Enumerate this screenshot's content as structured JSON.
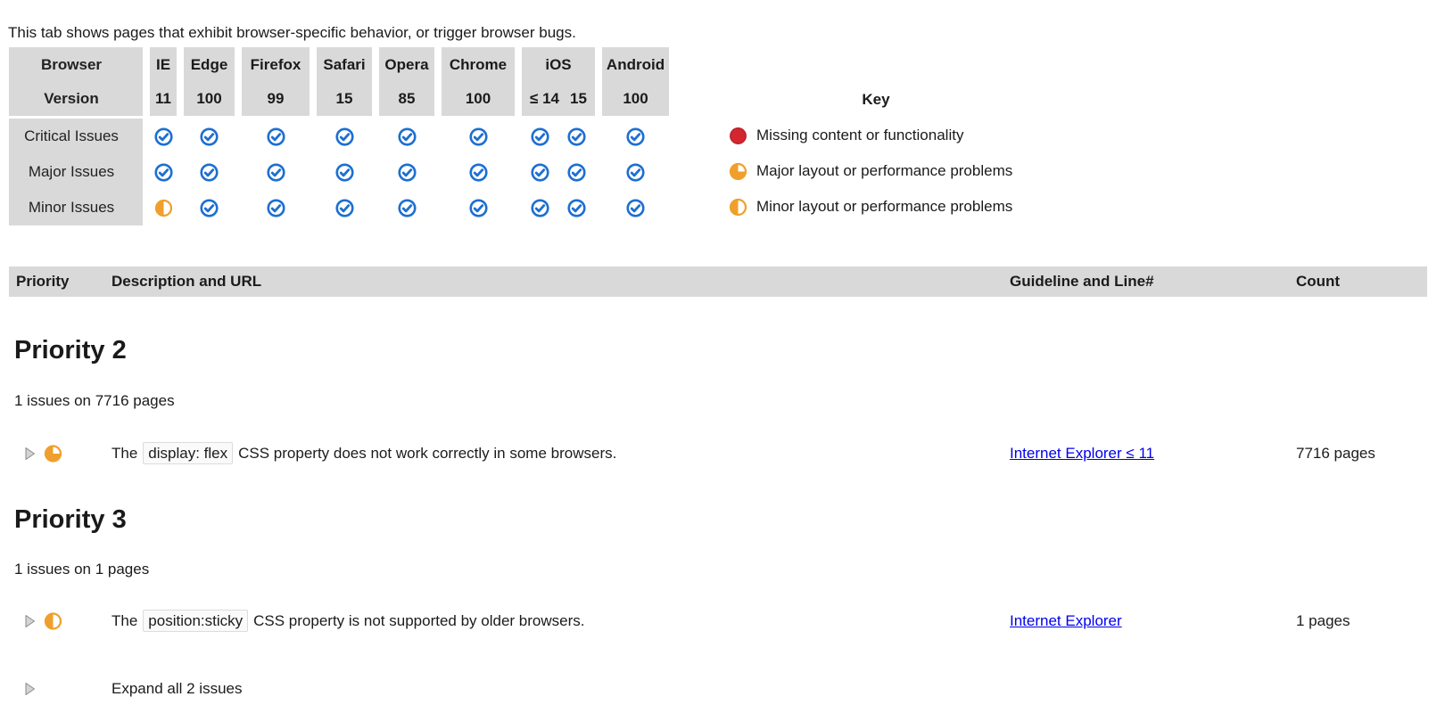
{
  "intro": "This tab shows pages that exhibit browser-specific behavior, or trigger browser bugs.",
  "browser_table": {
    "corner_labels": {
      "browser": "Browser",
      "version": "Version"
    },
    "browsers": [
      {
        "name": "IE",
        "versions": [
          "11"
        ]
      },
      {
        "name": "Edge",
        "versions": [
          "100"
        ]
      },
      {
        "name": "Firefox",
        "versions": [
          "99"
        ]
      },
      {
        "name": "Safari",
        "versions": [
          "15"
        ]
      },
      {
        "name": "Opera",
        "versions": [
          "85"
        ]
      },
      {
        "name": "Chrome",
        "versions": [
          "100"
        ]
      },
      {
        "name": "iOS",
        "versions": [
          "≤ 14",
          "15"
        ]
      },
      {
        "name": "Android",
        "versions": [
          "100"
        ]
      }
    ],
    "rows": [
      {
        "label": "Critical Issues",
        "cells": [
          [
            "ok"
          ],
          [
            "ok"
          ],
          [
            "ok"
          ],
          [
            "ok"
          ],
          [
            "ok"
          ],
          [
            "ok"
          ],
          [
            "ok",
            "ok"
          ],
          [
            "ok"
          ]
        ]
      },
      {
        "label": "Major Issues",
        "cells": [
          [
            "ok"
          ],
          [
            "ok"
          ],
          [
            "ok"
          ],
          [
            "ok"
          ],
          [
            "ok"
          ],
          [
            "ok"
          ],
          [
            "ok",
            "ok"
          ],
          [
            "ok"
          ]
        ]
      },
      {
        "label": "Minor Issues",
        "cells": [
          [
            "minor"
          ],
          [
            "ok"
          ],
          [
            "ok"
          ],
          [
            "ok"
          ],
          [
            "ok"
          ],
          [
            "ok"
          ],
          [
            "ok",
            "ok"
          ],
          [
            "ok"
          ]
        ]
      }
    ]
  },
  "key": {
    "title": "Key",
    "items": [
      {
        "icon": "critical",
        "label": "Missing content or functionality"
      },
      {
        "icon": "major",
        "label": "Major layout or performance problems"
      },
      {
        "icon": "minor",
        "label": "Minor layout or performance problems"
      }
    ]
  },
  "listing_header": {
    "priority": "Priority",
    "description": "Description and URL",
    "guideline": "Guideline and Line#",
    "count": "Count"
  },
  "sections": [
    {
      "heading": "Priority 2",
      "summary": "1 issues on 7716 pages",
      "issues": [
        {
          "icon": "major",
          "text_before": "The",
          "code": "display: flex",
          "text_after": "CSS property does not work correctly in some browsers.",
          "guideline": "Internet Explorer ≤ 11",
          "count": "7716 pages"
        }
      ]
    },
    {
      "heading": "Priority 3",
      "summary": "1 issues on 1 pages",
      "issues": [
        {
          "icon": "minor",
          "text_before": "The",
          "code": "position:sticky",
          "text_after": "CSS property is not supported by older browsers.",
          "guideline": "Internet Explorer",
          "count": "1 pages"
        }
      ]
    }
  ],
  "expand_all": "Expand all 2 issues",
  "colors": {
    "check_blue": "#1d6fd1",
    "orange": "#efa02c",
    "red": "#d32630",
    "red_dark": "#b8232a",
    "link_blue": "#0000ee",
    "header_gray": "#d9d9d9",
    "triangle_fill": "#d4d4d4",
    "triangle_stroke": "#8a8a8a"
  }
}
